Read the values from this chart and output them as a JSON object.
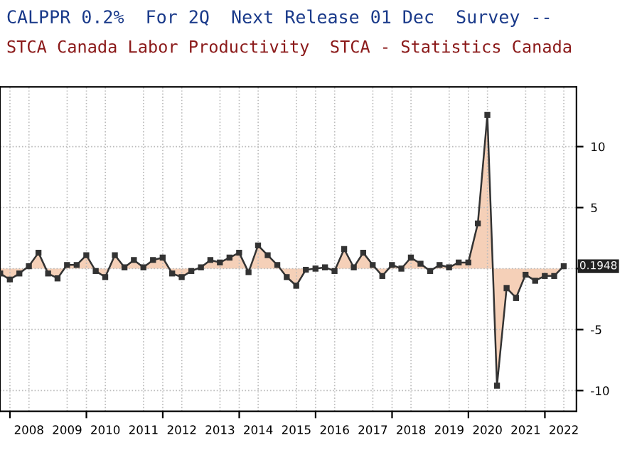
{
  "chart_data": {
    "type": "area",
    "title": "CALPPR 0.2%  For 2Q  Next Release 01 Dec  Survey --",
    "subtitle": "STCA Canada Labor Productivity  STCA - Statistics Canada",
    "x": [
      "2007-09-30",
      "2007-12-31",
      "2008-03-31",
      "2008-06-30",
      "2008-09-30",
      "2008-12-31",
      "2009-03-31",
      "2009-06-30",
      "2009-09-30",
      "2009-12-31",
      "2010-03-31",
      "2010-06-30",
      "2010-09-30",
      "2010-12-31",
      "2011-03-31",
      "2011-06-30",
      "2011-09-30",
      "2011-12-31",
      "2012-03-31",
      "2012-06-30",
      "2012-09-30",
      "2012-12-31",
      "2013-03-31",
      "2013-06-30",
      "2013-09-30",
      "2013-12-31",
      "2014-03-31",
      "2014-06-30",
      "2014-09-30",
      "2014-12-31",
      "2015-03-31",
      "2015-06-30",
      "2015-09-30",
      "2015-12-31",
      "2016-03-31",
      "2016-06-30",
      "2016-09-30",
      "2016-12-31",
      "2017-03-31",
      "2017-06-30",
      "2017-09-30",
      "2017-12-31",
      "2018-03-31",
      "2018-06-30",
      "2018-09-30",
      "2018-12-31",
      "2019-03-31",
      "2019-06-30",
      "2019-09-30",
      "2019-12-31",
      "2020-03-31",
      "2020-06-30",
      "2020-09-30",
      "2020-12-31",
      "2021-03-31",
      "2021-06-30",
      "2021-09-30",
      "2021-12-31",
      "2022-03-31",
      "2022-06-30"
    ],
    "series": [
      {
        "color": "#f5d0b8",
        "values": [
          -0.4,
          -0.9,
          -0.4,
          0.2,
          1.3,
          -0.4,
          -0.8,
          0.3,
          0.3,
          1.1,
          -0.2,
          -0.7,
          1.1,
          0.1,
          0.7,
          0.1,
          0.7,
          0.9,
          -0.4,
          -0.7,
          -0.2,
          0.1,
          0.7,
          0.5,
          0.9,
          1.3,
          -0.3,
          1.9,
          1.1,
          0.3,
          -0.7,
          -1.4,
          -0.1,
          0.0,
          0.1,
          -0.2,
          1.6,
          0.1,
          1.3,
          0.3,
          -0.6,
          0.3,
          0.0,
          0.9,
          0.4,
          -0.2,
          0.3,
          0.1,
          0.5,
          0.5,
          3.7,
          12.6,
          -9.6,
          -1.6,
          -2.4,
          -0.5,
          -1.0,
          -0.6,
          -0.6,
          0.1948
        ]
      }
    ],
    "marker": "square",
    "xlim": [
      "2007-09-28",
      "2022-10-30"
    ],
    "xticks": [
      {
        "value": "2008-01-01",
        "label": null
      },
      {
        "value": "2008-07-01",
        "label": "2008"
      },
      {
        "value": "2009-07-01",
        "label": "2009"
      },
      {
        "value": "2010-01-01",
        "label": null
      },
      {
        "value": "2010-07-01",
        "label": "2010"
      },
      {
        "value": "2011-07-01",
        "label": "2011"
      },
      {
        "value": "2012-01-01",
        "label": null
      },
      {
        "value": "2012-07-01",
        "label": "2012"
      },
      {
        "value": "2013-07-01",
        "label": "2013"
      },
      {
        "value": "2014-01-01",
        "label": null
      },
      {
        "value": "2014-07-01",
        "label": "2014"
      },
      {
        "value": "2015-07-01",
        "label": "2015"
      },
      {
        "value": "2016-01-01",
        "label": null
      },
      {
        "value": "2016-07-01",
        "label": "2016"
      },
      {
        "value": "2017-07-01",
        "label": "2017"
      },
      {
        "value": "2018-01-01",
        "label": null
      },
      {
        "value": "2018-07-01",
        "label": "2018"
      },
      {
        "value": "2019-07-01",
        "label": "2019"
      },
      {
        "value": "2020-01-01",
        "label": null
      },
      {
        "value": "2020-07-01",
        "label": "2020"
      },
      {
        "value": "2021-07-01",
        "label": "2021"
      },
      {
        "value": "2022-01-01",
        "label": null
      },
      {
        "value": "2022-07-01",
        "label": "2022"
      }
    ],
    "ylim": [
      -11.7,
      14.9
    ],
    "yticks": [
      -10,
      -5,
      {
        "value": 0,
        "label": null
      },
      5,
      10
    ],
    "grid": true,
    "annotations": [
      {
        "text": "0.1948",
        "x": "2022-06-30",
        "y": 0.1948
      }
    ]
  }
}
